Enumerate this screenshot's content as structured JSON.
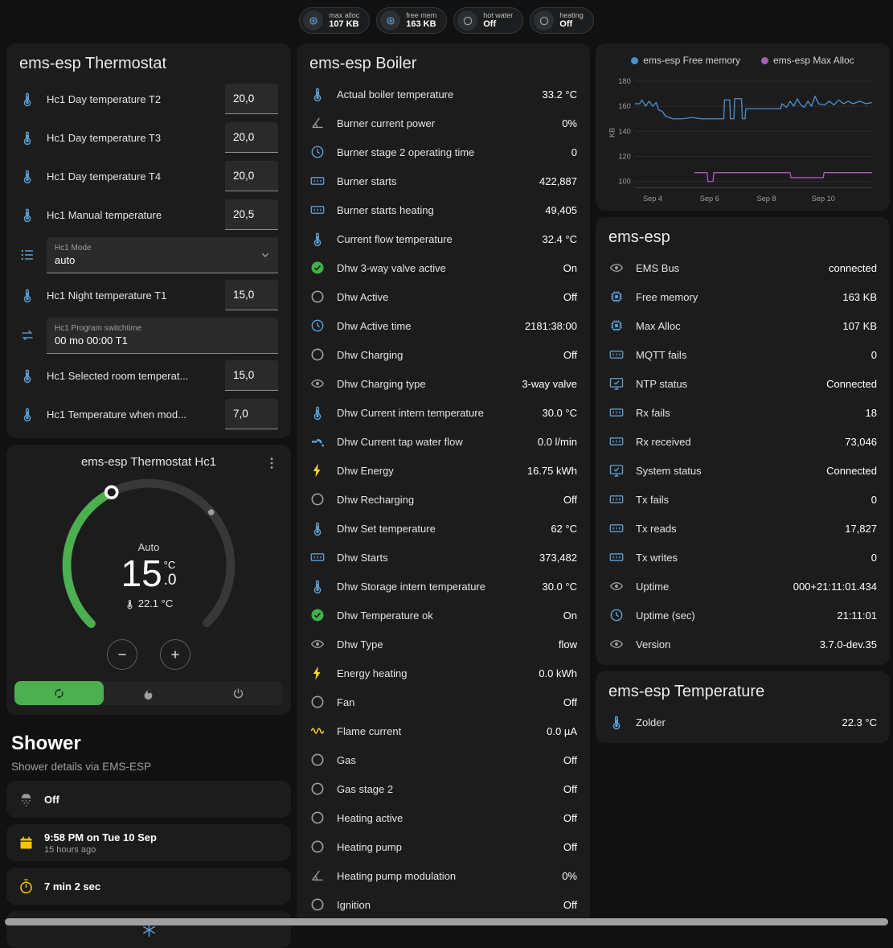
{
  "colors": {
    "accent_green": "#4caf50",
    "icon_blue": "#5d9fd3",
    "icon_gray": "#9e9e9e",
    "icon_yellow": "#fdd835",
    "icon_amber": "#ffc107",
    "icon_green": "#42b04d"
  },
  "topbar": {
    "chips": [
      {
        "icon": "chip-icon",
        "icon_color": "#5d9fd3",
        "label": "max alloc",
        "value": "107 KB"
      },
      {
        "icon": "chip-icon",
        "icon_color": "#5d9fd3",
        "label": "free mem",
        "value": "163 KB"
      },
      {
        "icon": "circle-icon",
        "icon_color": "#9e9e9e",
        "label": "hot water",
        "value": "Off"
      },
      {
        "icon": "circle-icon",
        "icon_color": "#9e9e9e",
        "label": "heating",
        "value": "Off"
      }
    ]
  },
  "thermostat_card": {
    "title": "ems-esp Thermostat",
    "rows_top": [
      {
        "icon": "thermometer-icon",
        "icon_color": "#5d9fd3",
        "name": "Hc1 Day temperature T2",
        "value": "20,0"
      },
      {
        "icon": "thermometer-icon",
        "icon_color": "#5d9fd3",
        "name": "Hc1 Day temperature T3",
        "value": "20,0"
      },
      {
        "icon": "thermometer-icon",
        "icon_color": "#5d9fd3",
        "name": "Hc1 Day temperature T4",
        "value": "20,0"
      },
      {
        "icon": "thermometer-icon",
        "icon_color": "#5d9fd3",
        "name": "Hc1 Manual temperature",
        "value": "20,5"
      }
    ],
    "mode_row": {
      "icon": "list-icon",
      "label": "Hc1 Mode",
      "value": "auto",
      "chevron_icon": "chevron-down-icon"
    },
    "rows_mid": [
      {
        "icon": "thermometer-icon",
        "icon_color": "#5d9fd3",
        "name": "Hc1 Night temperature T1",
        "value": "15,0"
      }
    ],
    "program_row": {
      "icon": "swap-icon",
      "label": "Hc1 Program switchtime",
      "value": "00 mo 00:00 T1"
    },
    "rows_bottom": [
      {
        "icon": "thermometer-icon",
        "icon_color": "#5d9fd3",
        "name": "Hc1 Selected room temperat...",
        "value": "15,0"
      },
      {
        "icon": "thermometer-icon",
        "icon_color": "#5d9fd3",
        "name": "Hc1 Temperature when mod...",
        "value": "7,0"
      }
    ]
  },
  "hc1_card": {
    "title": "ems-esp Thermostat Hc1",
    "menu_icon": "dots-vertical-icon",
    "mode": "Auto",
    "temp_whole": "15",
    "temp_frac": ".0",
    "unit": "°C",
    "current_icon": "thermometer-icon",
    "current": "22.1 °C",
    "decrease_icon": "minus-icon",
    "increase_icon": "plus-icon",
    "buttons": [
      {
        "icon": "auto-mode-icon",
        "state": "active"
      },
      {
        "icon": "fire-icon",
        "state": ""
      },
      {
        "icon": "power-icon",
        "state": ""
      }
    ]
  },
  "shower": {
    "title": "Shower",
    "subtitle": "Shower details via EMS-ESP",
    "items": [
      {
        "icon": "shower-icon",
        "icon_color": "#9e9e9e",
        "value": "Off",
        "sub": ""
      },
      {
        "icon": "calendar-icon",
        "icon_color": "#ffc107",
        "value": "9:58 PM on Tue 10 Sep",
        "sub": "15 hours ago"
      },
      {
        "icon": "timer-icon",
        "icon_color": "#ffc107",
        "value": "7 min 2 sec",
        "sub": ""
      }
    ],
    "partial_icon": "snowflake-icon"
  },
  "boiler_card": {
    "title": "ems-esp Boiler",
    "rows": [
      {
        "icon": "thermometer-icon",
        "icon_color": "#5d9fd3",
        "name": "Actual boiler temperature",
        "value": "33.2 °C"
      },
      {
        "icon": "gauge-icon",
        "icon_color": "#9e9e9e",
        "name": "Burner current power",
        "value": "0%"
      },
      {
        "icon": "clock-icon",
        "icon_color": "#5d9fd3",
        "name": "Burner stage 2 operating time",
        "value": "0"
      },
      {
        "icon": "counter-icon",
        "icon_color": "#5d9fd3",
        "name": "Burner starts",
        "value": "422,887"
      },
      {
        "icon": "counter-icon",
        "icon_color": "#5d9fd3",
        "name": "Burner starts heating",
        "value": "49,405"
      },
      {
        "icon": "thermometer-icon",
        "icon_color": "#5d9fd3",
        "name": "Current flow temperature",
        "value": "32.4 °C"
      },
      {
        "icon": "check-circle-icon",
        "icon_color": "#42b04d",
        "name": "Dhw 3-way valve active",
        "value": "On"
      },
      {
        "icon": "circle-icon",
        "icon_color": "#9e9e9e",
        "name": "Dhw Active",
        "value": "Off"
      },
      {
        "icon": "clock-icon",
        "icon_color": "#5d9fd3",
        "name": "Dhw Active time",
        "value": "2181:38:00"
      },
      {
        "icon": "circle-icon",
        "icon_color": "#9e9e9e",
        "name": "Dhw Charging",
        "value": "Off"
      },
      {
        "icon": "eye-icon",
        "icon_color": "#9e9e9e",
        "name": "Dhw Charging type",
        "value": "3-way valve"
      },
      {
        "icon": "thermometer-icon",
        "icon_color": "#5d9fd3",
        "name": "Dhw Current intern temperature",
        "value": "30.0 °C"
      },
      {
        "icon": "pump-icon",
        "icon_color": "#5d9fd3",
        "name": "Dhw Current tap water flow",
        "value": "0.0 l/min"
      },
      {
        "icon": "flash-icon",
        "icon_color": "#fdd835",
        "name": "Dhw Energy",
        "value": "16.75 kWh"
      },
      {
        "icon": "circle-icon",
        "icon_color": "#9e9e9e",
        "name": "Dhw Recharging",
        "value": "Off"
      },
      {
        "icon": "thermometer-icon",
        "icon_color": "#5d9fd3",
        "name": "Dhw Set temperature",
        "value": "62 °C"
      },
      {
        "icon": "counter-icon",
        "icon_color": "#5d9fd3",
        "name": "Dhw Starts",
        "value": "373,482"
      },
      {
        "icon": "thermometer-icon",
        "icon_color": "#5d9fd3",
        "name": "Dhw Storage intern temperature",
        "value": "30.0 °C"
      },
      {
        "icon": "check-circle-icon",
        "icon_color": "#42b04d",
        "name": "Dhw Temperature ok",
        "value": "On"
      },
      {
        "icon": "eye-icon",
        "icon_color": "#9e9e9e",
        "name": "Dhw Type",
        "value": "flow"
      },
      {
        "icon": "flash-icon",
        "icon_color": "#fdd835",
        "name": "Energy heating",
        "value": "0.0 kWh"
      },
      {
        "icon": "circle-icon",
        "icon_color": "#9e9e9e",
        "name": "Fan",
        "value": "Off"
      },
      {
        "icon": "current-icon",
        "icon_color": "#fdd835",
        "name": "Flame current",
        "value": "0.0 µA"
      },
      {
        "icon": "circle-icon",
        "icon_color": "#9e9e9e",
        "name": "Gas",
        "value": "Off"
      },
      {
        "icon": "circle-icon",
        "icon_color": "#9e9e9e",
        "name": "Gas stage 2",
        "value": "Off"
      },
      {
        "icon": "circle-icon",
        "icon_color": "#9e9e9e",
        "name": "Heating active",
        "value": "Off"
      },
      {
        "icon": "circle-icon",
        "icon_color": "#9e9e9e",
        "name": "Heating pump",
        "value": "Off"
      },
      {
        "icon": "gauge-icon",
        "icon_color": "#9e9e9e",
        "name": "Heating pump modulation",
        "value": "0%"
      },
      {
        "icon": "circle-icon",
        "icon_color": "#9e9e9e",
        "name": "Ignition",
        "value": "Off"
      }
    ]
  },
  "ems_card": {
    "title": "ems-esp",
    "rows": [
      {
        "icon": "eye-icon",
        "icon_color": "#9e9e9e",
        "name": "EMS Bus",
        "value": "connected"
      },
      {
        "icon": "chip-icon",
        "icon_color": "#5d9fd3",
        "name": "Free memory",
        "value": "163 KB"
      },
      {
        "icon": "chip-icon",
        "icon_color": "#5d9fd3",
        "name": "Max Alloc",
        "value": "107 KB"
      },
      {
        "icon": "counter-icon",
        "icon_color": "#5d9fd3",
        "name": "MQTT fails",
        "value": "0"
      },
      {
        "icon": "monitor-check-icon",
        "icon_color": "#5d9fd3",
        "name": "NTP status",
        "value": "Connected"
      },
      {
        "icon": "counter-icon",
        "icon_color": "#5d9fd3",
        "name": "Rx fails",
        "value": "18"
      },
      {
        "icon": "counter-icon",
        "icon_color": "#5d9fd3",
        "name": "Rx received",
        "value": "73,046"
      },
      {
        "icon": "monitor-check-icon",
        "icon_color": "#5d9fd3",
        "name": "System status",
        "value": "Connected"
      },
      {
        "icon": "counter-icon",
        "icon_color": "#5d9fd3",
        "name": "Tx fails",
        "value": "0"
      },
      {
        "icon": "counter-icon",
        "icon_color": "#5d9fd3",
        "name": "Tx reads",
        "value": "17,827"
      },
      {
        "icon": "counter-icon",
        "icon_color": "#5d9fd3",
        "name": "Tx writes",
        "value": "0"
      },
      {
        "icon": "eye-icon",
        "icon_color": "#9e9e9e",
        "name": "Uptime",
        "value": "000+21:11:01.434"
      },
      {
        "icon": "clock-icon",
        "icon_color": "#5d9fd3",
        "name": "Uptime (sec)",
        "value": "21:11:01"
      },
      {
        "icon": "eye-icon",
        "icon_color": "#9e9e9e",
        "name": "Version",
        "value": "3.7.0-dev.35"
      }
    ]
  },
  "temperature_card": {
    "title": "ems-esp Temperature",
    "rows": [
      {
        "icon": "thermometer-icon",
        "icon_color": "#5d9fd3",
        "name": "Zolder",
        "value": "22.3 °C"
      }
    ]
  },
  "chart_data": {
    "type": "line",
    "ylabel": "KB",
    "ylim": [
      95,
      183
    ],
    "yticks": [
      100,
      120,
      140,
      160,
      180
    ],
    "xticks": [
      {
        "x": 0.075,
        "label": "Sep 4"
      },
      {
        "x": 0.315,
        "label": "Sep 6"
      },
      {
        "x": 0.555,
        "label": "Sep 8"
      },
      {
        "x": 0.795,
        "label": "Sep 10"
      }
    ],
    "legend_position": "top",
    "grid": true,
    "series": [
      {
        "name": "ems-esp Free memory",
        "color": "#4d8fcc",
        "points": [
          [
            0,
            162
          ],
          [
            0.02,
            162
          ],
          [
            0.03,
            165
          ],
          [
            0.045,
            160
          ],
          [
            0.06,
            164
          ],
          [
            0.075,
            160
          ],
          [
            0.09,
            163
          ],
          [
            0.1,
            157
          ],
          [
            0.115,
            156
          ],
          [
            0.13,
            152
          ],
          [
            0.145,
            151
          ],
          [
            0.16,
            150
          ],
          [
            0.2,
            150
          ],
          [
            0.24,
            151
          ],
          [
            0.28,
            150
          ],
          [
            0.33,
            150
          ],
          [
            0.375,
            150
          ],
          [
            0.378,
            165
          ],
          [
            0.4,
            165
          ],
          [
            0.403,
            150
          ],
          [
            0.418,
            150
          ],
          [
            0.421,
            166
          ],
          [
            0.45,
            166
          ],
          [
            0.453,
            150
          ],
          [
            0.465,
            150
          ],
          [
            0.468,
            158
          ],
          [
            0.52,
            158
          ],
          [
            0.57,
            158
          ],
          [
            0.615,
            158
          ],
          [
            0.62,
            162
          ],
          [
            0.64,
            159
          ],
          [
            0.655,
            164
          ],
          [
            0.67,
            160
          ],
          [
            0.685,
            166
          ],
          [
            0.7,
            161
          ],
          [
            0.715,
            159
          ],
          [
            0.73,
            164
          ],
          [
            0.745,
            160
          ],
          [
            0.76,
            168
          ],
          [
            0.775,
            162
          ],
          [
            0.8,
            161
          ],
          [
            0.82,
            164
          ],
          [
            0.84,
            161
          ],
          [
            0.86,
            165
          ],
          [
            0.88,
            162
          ],
          [
            0.9,
            164
          ],
          [
            0.92,
            162
          ],
          [
            0.95,
            164
          ],
          [
            0.975,
            162
          ],
          [
            1,
            163
          ]
        ]
      },
      {
        "name": "ems-esp Max Alloc",
        "color": "#a85cb8",
        "points": [
          [
            0.25,
            107
          ],
          [
            0.305,
            107
          ],
          [
            0.308,
            100
          ],
          [
            0.33,
            100
          ],
          [
            0.333,
            107
          ],
          [
            0.655,
            107
          ],
          [
            0.658,
            103
          ],
          [
            0.795,
            103
          ],
          [
            0.798,
            107
          ],
          [
            1,
            107
          ]
        ]
      }
    ]
  }
}
